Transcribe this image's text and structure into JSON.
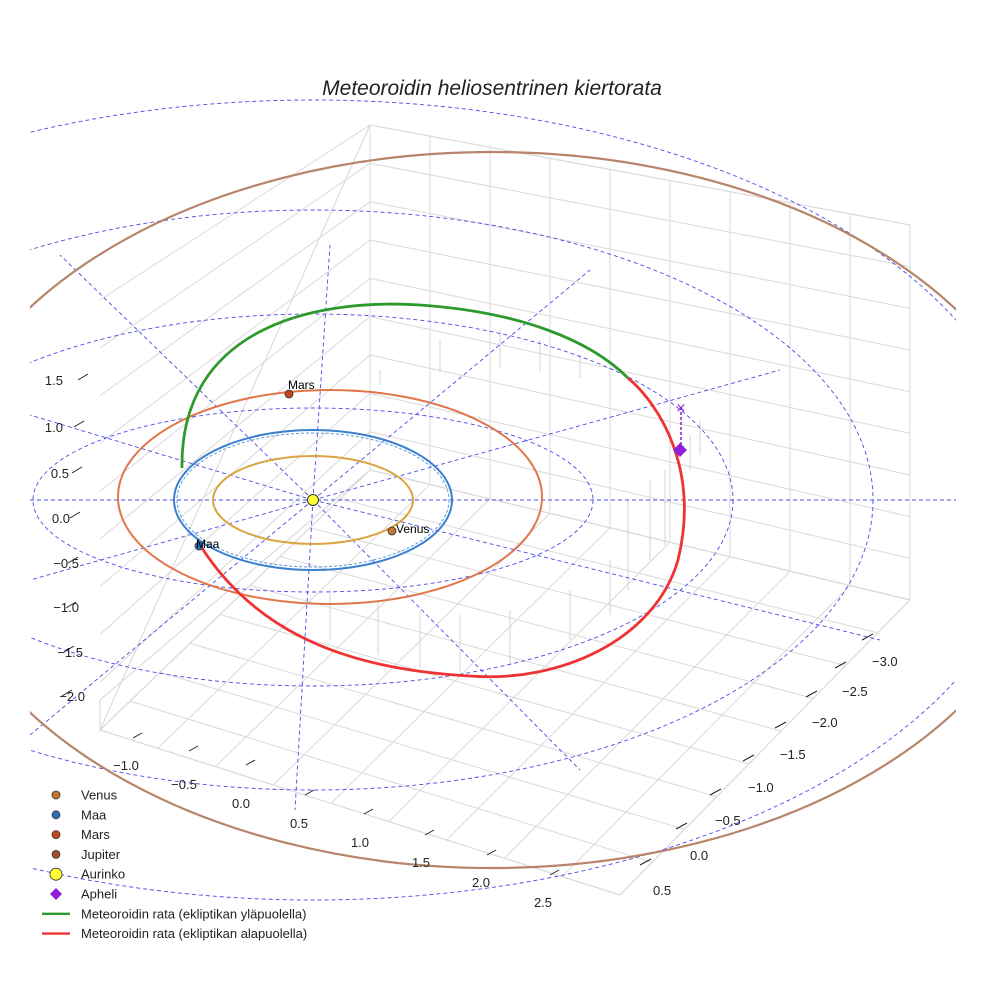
{
  "chart_data": {
    "type": "line",
    "title": "Meteoroidin heliosentrinen kiertorata",
    "projection": "3d",
    "grid": true,
    "legend_position": "bottom-left",
    "axes": {
      "x_ticks": [
        "−1.0",
        "−0.5",
        "0.0",
        "0.5",
        "1.0",
        "1.5",
        "2.0",
        "2.5"
      ],
      "y_ticks": [
        "−3.0",
        "−2.5",
        "−2.0",
        "−1.5",
        "−1.0",
        "−0.5",
        "0.0",
        "0.5"
      ],
      "z_ticks": [
        "1.5",
        "1.0",
        "0.5",
        "0.0",
        "−0.5",
        "−1.0",
        "−1.5",
        "−2.0"
      ],
      "xlim": [
        -1.3,
        2.8
      ],
      "ylim": [
        -3.3,
        0.7
      ],
      "zlim": [
        -2.2,
        1.8
      ]
    },
    "planets": [
      {
        "name": "Venus",
        "color": "#d9a441",
        "marker": "#c8762a",
        "radius_au": 0.72
      },
      {
        "name": "Maa",
        "color": "#3a7fd0",
        "marker": "#2b6fb3",
        "radius_au": 1.0
      },
      {
        "name": "Mars",
        "color": "#e0764a",
        "marker": "#c5461b",
        "radius_au": 1.52
      },
      {
        "name": "Jupiter",
        "color": "#b8846a",
        "marker": "#a0522d",
        "radius_au": 5.2
      }
    ],
    "sun": {
      "name": "Aurinko",
      "color": "#ffff33"
    },
    "aphelion": {
      "name": "Apheli",
      "color": "#8e1fd6"
    },
    "series": [
      {
        "name": "Meteoroidin rata (ekliptikan yläpuolella)",
        "color": "#2e9a2e"
      },
      {
        "name": "Meteoroidin rata (ekliptikan alapuolella)",
        "color": "#ee3333"
      }
    ]
  },
  "legend": {
    "items": [
      {
        "label": "Venus",
        "marker": "dot",
        "color": "#c8762a"
      },
      {
        "label": "Maa",
        "marker": "dot",
        "color": "#2b6fb3"
      },
      {
        "label": "Mars",
        "marker": "dot",
        "color": "#c5461b"
      },
      {
        "label": "Jupiter",
        "marker": "dot",
        "color": "#a0522d"
      },
      {
        "label": "Aurinko",
        "marker": "bigdot",
        "color": "#ffff33"
      },
      {
        "label": "Apheli",
        "marker": "diamond",
        "color": "#8e1fd6"
      },
      {
        "label": "Meteoroidin rata (ekliptikan yläpuolella)",
        "marker": "line",
        "color": "#2e9a2e"
      },
      {
        "label": "Meteoroidin rata (ekliptikan alapuolella)",
        "marker": "line",
        "color": "#ee3333"
      }
    ]
  },
  "planet_labels": {
    "venus": "Venus",
    "maa": "Maa",
    "mars": "Mars"
  }
}
